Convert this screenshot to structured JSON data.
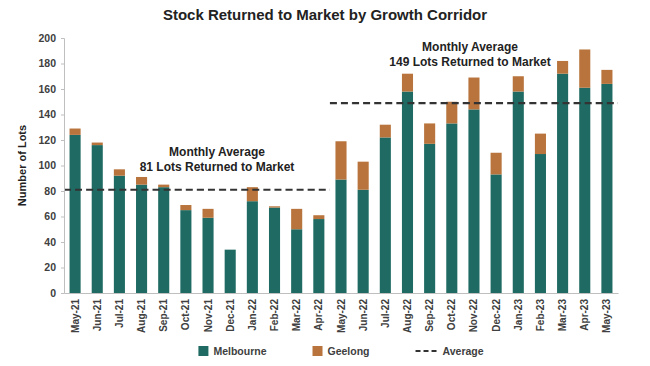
{
  "chart_data": {
    "type": "bar",
    "title": "Stock Returned to Market by Growth Corridor",
    "y_label": "Number of Lots",
    "categories": [
      "May-21",
      "Jun-21",
      "Jul-21",
      "Aug-21",
      "Sep-21",
      "Oct-21",
      "Nov-21",
      "Dec-21",
      "Jan-22",
      "Feb-22",
      "Mar-22",
      "Apr-22",
      "May-22",
      "Jun-22",
      "Jul-22",
      "Aug-22",
      "Sep-22",
      "Oct-22",
      "Nov-22",
      "Dec-22",
      "Jan-23",
      "Feb-23",
      "Mar-23",
      "Apr-23",
      "May-23"
    ],
    "series": [
      {
        "name": "Melbourne",
        "color": "#1f6b63",
        "values": [
          124,
          116,
          92,
          85,
          83,
          65,
          59,
          34,
          72,
          67,
          50,
          58,
          89,
          81,
          122,
          158,
          117,
          133,
          144,
          93,
          158,
          109,
          172,
          161,
          164
        ]
      },
      {
        "name": "Geelong",
        "color": "#b8743c",
        "values": [
          5,
          2,
          5,
          6,
          2,
          4,
          7,
          0,
          11,
          1,
          16,
          3,
          30,
          22,
          10,
          14,
          16,
          17,
          25,
          17,
          12,
          16,
          10,
          30,
          11
        ]
      },
      {
        "name": "Average",
        "type": "line",
        "line_style": "dashed",
        "color": "#333333",
        "values": [
          81,
          81,
          81,
          81,
          81,
          81,
          81,
          81,
          81,
          81,
          81,
          81,
          149,
          149,
          149,
          149,
          149,
          149,
          149,
          149,
          149,
          149,
          149,
          149,
          149
        ]
      }
    ],
    "stacked": true,
    "ylim": [
      0,
      200
    ],
    "yticks": [
      0,
      20,
      40,
      60,
      80,
      100,
      120,
      140,
      160,
      180,
      200
    ],
    "grid": false,
    "legend": "bottom",
    "annotations": [
      [
        "Monthly Average",
        "81 Lots Returned to Market"
      ],
      [
        "Monthly Average",
        "149 Lots Returned to Market"
      ]
    ]
  }
}
